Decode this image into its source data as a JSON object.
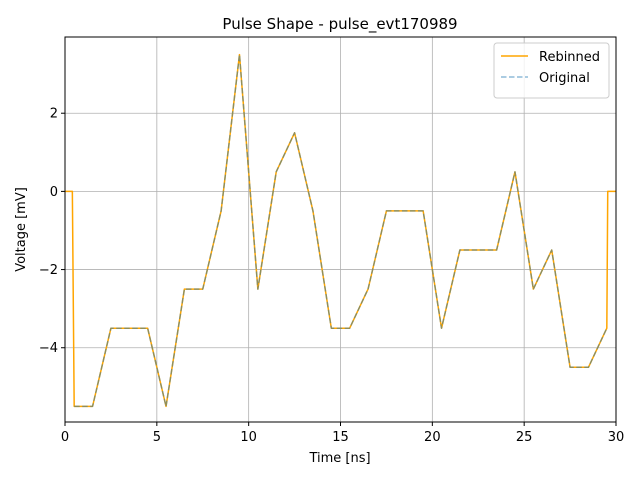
{
  "chart_data": {
    "type": "line",
    "title": "Pulse Shape - pulse_evt170989",
    "xlabel": "Time [ns]",
    "ylabel": "Voltage [mV]",
    "xlim": [
      0,
      30
    ],
    "ylim": [
      -5.9,
      3.95
    ],
    "xticks": [
      0,
      5,
      10,
      15,
      20,
      25,
      30
    ],
    "yticks": [
      -4,
      -2,
      0,
      2
    ],
    "grid": true,
    "legend_position": "top-right",
    "series": [
      {
        "name": "Rebinned",
        "color": "#ffa500",
        "style": "solid",
        "x": [
          0,
          0.4,
          0.5,
          1.5,
          2.5,
          3.5,
          4.5,
          5.5,
          6.5,
          7.5,
          8.5,
          9.5,
          10.5,
          11.5,
          12.5,
          13.5,
          14.5,
          15.5,
          16.5,
          17.5,
          18.5,
          19.5,
          20.5,
          21.5,
          22.5,
          23.5,
          24.5,
          25.5,
          26.5,
          27.5,
          28.5,
          29.5,
          29.55,
          30
        ],
        "y": [
          0,
          0,
          -5.5,
          -5.5,
          -3.5,
          -3.5,
          -3.5,
          -5.5,
          -2.5,
          -2.5,
          -0.5,
          3.5,
          -2.5,
          0.5,
          1.5,
          -0.5,
          -3.5,
          -3.5,
          -2.5,
          -0.5,
          -0.5,
          -0.5,
          -3.5,
          -1.5,
          -1.5,
          -1.5,
          0.5,
          -2.5,
          -1.5,
          -4.5,
          -4.5,
          -3.5,
          0,
          0
        ]
      },
      {
        "name": "Original",
        "color": "#1f77b4",
        "style": "dashed",
        "x": [
          0.5,
          1.5,
          2.5,
          3.5,
          4.5,
          5.5,
          6.5,
          7.5,
          8.5,
          9.5,
          10.5,
          11.5,
          12.5,
          13.5,
          14.5,
          15.5,
          16.5,
          17.5,
          18.5,
          19.5,
          20.5,
          21.5,
          22.5,
          23.5,
          24.5,
          25.5,
          26.5,
          27.5,
          28.5,
          29.5
        ],
        "y": [
          -5.5,
          -5.5,
          -3.5,
          -3.5,
          -3.5,
          -5.5,
          -2.5,
          -2.5,
          -0.5,
          3.5,
          -2.5,
          0.5,
          1.5,
          -0.5,
          -3.5,
          -3.5,
          -2.5,
          -0.5,
          -0.5,
          -0.5,
          -3.5,
          -1.5,
          -1.5,
          -1.5,
          0.5,
          -2.5,
          -1.5,
          -4.5,
          -4.5,
          -3.5
        ]
      }
    ]
  }
}
